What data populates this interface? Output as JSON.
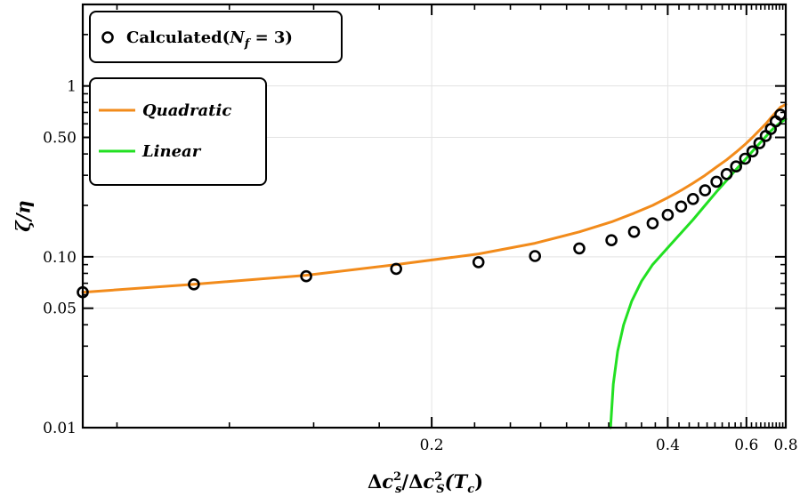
{
  "chart_data": {
    "type": "line",
    "title": "",
    "xlabel": "Δc_s² / Δc_S²(T_c)",
    "xlabel_parts": {
      "num_base": "Δ",
      "num_var": "c",
      "num_sub": "s",
      "num_sup": "2",
      "sep": "/",
      "den_base": "Δ",
      "den_var": "c",
      "den_sub": "S",
      "den_sup": "2",
      "den_arg": "(T",
      "den_arg_sub": "c",
      "den_close": ")"
    },
    "ylabel": "ζ/η",
    "xscale": "reciprocal",
    "yscale": "log",
    "xlim": [
      0.115,
      0.8
    ],
    "ylim": [
      0.01,
      3.0
    ],
    "x_ticks": [
      {
        "value": 0.2,
        "label": "0.2"
      },
      {
        "value": 0.4,
        "label": "0.4"
      },
      {
        "value": 0.6,
        "label": "0.6"
      },
      {
        "value": 0.8,
        "label": "0.8"
      }
    ],
    "y_ticks": [
      {
        "value": 0.01,
        "label": "0.01"
      },
      {
        "value": 0.05,
        "label": "0.05"
      },
      {
        "value": 0.1,
        "label": "0.10"
      },
      {
        "value": 0.5,
        "label": "0.50"
      },
      {
        "value": 1,
        "label": "1"
      }
    ],
    "grid": true,
    "series": [
      {
        "name": "Calculated(N_f = 3)",
        "legend_parts": {
          "text": "Calculated(",
          "var": "N",
          "sub": "f",
          "rest": " = 3)"
        },
        "kind": "scatter",
        "color": "#000000",
        "points": [
          [
            0.115,
            0.062
          ],
          [
            0.133,
            0.069
          ],
          [
            0.158,
            0.077
          ],
          [
            0.186,
            0.085
          ],
          [
            0.222,
            0.093
          ],
          [
            0.256,
            0.101
          ],
          [
            0.291,
            0.112
          ],
          [
            0.323,
            0.125
          ],
          [
            0.35,
            0.14
          ],
          [
            0.376,
            0.157
          ],
          [
            0.4,
            0.176
          ],
          [
            0.424,
            0.197
          ],
          [
            0.448,
            0.218
          ],
          [
            0.475,
            0.245
          ],
          [
            0.504,
            0.275
          ],
          [
            0.533,
            0.305
          ],
          [
            0.563,
            0.338
          ],
          [
            0.595,
            0.375
          ],
          [
            0.624,
            0.414
          ],
          [
            0.654,
            0.462
          ],
          [
            0.684,
            0.51
          ],
          [
            0.71,
            0.56
          ],
          [
            0.737,
            0.62
          ],
          [
            0.765,
            0.68
          ]
        ]
      },
      {
        "name": "Quadratic",
        "kind": "line",
        "color": "#f28b1b",
        "points": [
          [
            0.115,
            0.062
          ],
          [
            0.133,
            0.069
          ],
          [
            0.158,
            0.078
          ],
          [
            0.186,
            0.09
          ],
          [
            0.222,
            0.104
          ],
          [
            0.256,
            0.12
          ],
          [
            0.291,
            0.14
          ],
          [
            0.323,
            0.16
          ],
          [
            0.35,
            0.18
          ],
          [
            0.376,
            0.2
          ],
          [
            0.4,
            0.222
          ],
          [
            0.424,
            0.245
          ],
          [
            0.448,
            0.27
          ],
          [
            0.475,
            0.3
          ],
          [
            0.504,
            0.335
          ],
          [
            0.533,
            0.37
          ],
          [
            0.563,
            0.41
          ],
          [
            0.595,
            0.455
          ],
          [
            0.624,
            0.5
          ],
          [
            0.654,
            0.55
          ],
          [
            0.684,
            0.6
          ],
          [
            0.71,
            0.65
          ],
          [
            0.737,
            0.7
          ],
          [
            0.765,
            0.75
          ],
          [
            0.8,
            0.78
          ]
        ]
      },
      {
        "name": "Linear",
        "kind": "line",
        "color": "#22e022",
        "points": [
          [
            0.322,
            0.01
          ],
          [
            0.325,
            0.018
          ],
          [
            0.33,
            0.028
          ],
          [
            0.337,
            0.04
          ],
          [
            0.347,
            0.055
          ],
          [
            0.36,
            0.072
          ],
          [
            0.376,
            0.09
          ],
          [
            0.4,
            0.113
          ],
          [
            0.424,
            0.138
          ],
          [
            0.448,
            0.165
          ],
          [
            0.475,
            0.2
          ],
          [
            0.504,
            0.24
          ],
          [
            0.533,
            0.28
          ],
          [
            0.563,
            0.325
          ],
          [
            0.595,
            0.37
          ],
          [
            0.624,
            0.415
          ],
          [
            0.654,
            0.46
          ],
          [
            0.684,
            0.505
          ],
          [
            0.71,
            0.545
          ],
          [
            0.737,
            0.58
          ],
          [
            0.765,
            0.61
          ],
          [
            0.8,
            0.64
          ]
        ]
      }
    ],
    "legends": [
      {
        "position": "top-left",
        "entries": [
          "Calculated(N_f = 3)"
        ]
      },
      {
        "position": "upper-left",
        "entries": [
          "Quadratic",
          "Linear"
        ]
      }
    ]
  }
}
